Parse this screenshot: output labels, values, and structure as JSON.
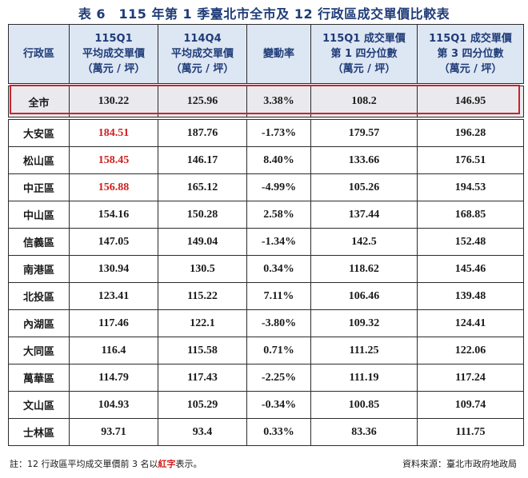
{
  "title": "表 6　115 年第 1 季臺北市全市及 12 行政區成交單價比較表",
  "headers": {
    "district": "行政區",
    "q_current": [
      "115Q1",
      "平均成交單價",
      "（萬元 / 坪）"
    ],
    "q_prev": [
      "114Q4",
      "平均成交單價",
      "（萬元 / 坪）"
    ],
    "change": "變動率",
    "p25": [
      "115Q1 成交單價",
      "第 1 四分位數",
      "（萬元 / 坪）"
    ],
    "p75": [
      "115Q1 成交單價",
      "第 3 四分位數",
      "（萬元 / 坪）"
    ]
  },
  "total": {
    "district": "全市",
    "q1": "130.22",
    "q4": "125.96",
    "change": "3.38%",
    "p25": "108.2",
    "p75": "146.95"
  },
  "rows": [
    {
      "district": "大安區",
      "q1": "184.51",
      "q4": "187.76",
      "change": "-1.73%",
      "p25": "179.57",
      "p75": "196.28",
      "highlight": true
    },
    {
      "district": "松山區",
      "q1": "158.45",
      "q4": "146.17",
      "change": "8.40%",
      "p25": "133.66",
      "p75": "176.51",
      "highlight": true
    },
    {
      "district": "中正區",
      "q1": "156.88",
      "q4": "165.12",
      "change": "-4.99%",
      "p25": "105.26",
      "p75": "194.53",
      "highlight": true
    },
    {
      "district": "中山區",
      "q1": "154.16",
      "q4": "150.28",
      "change": "2.58%",
      "p25": "137.44",
      "p75": "168.85",
      "highlight": false
    },
    {
      "district": "信義區",
      "q1": "147.05",
      "q4": "149.04",
      "change": "-1.34%",
      "p25": "142.5",
      "p75": "152.48",
      "highlight": false
    },
    {
      "district": "南港區",
      "q1": "130.94",
      "q4": "130.5",
      "change": "0.34%",
      "p25": "118.62",
      "p75": "145.46",
      "highlight": false
    },
    {
      "district": "北投區",
      "q1": "123.41",
      "q4": "115.22",
      "change": "7.11%",
      "p25": "106.46",
      "p75": "139.48",
      "highlight": false
    },
    {
      "district": "內湖區",
      "q1": "117.46",
      "q4": "122.1",
      "change": "-3.80%",
      "p25": "109.32",
      "p75": "124.41",
      "highlight": false
    },
    {
      "district": "大同區",
      "q1": "116.4",
      "q4": "115.58",
      "change": "0.71%",
      "p25": "111.25",
      "p75": "122.06",
      "highlight": false
    },
    {
      "district": "萬華區",
      "q1": "114.79",
      "q4": "117.43",
      "change": "-2.25%",
      "p25": "111.19",
      "p75": "117.24",
      "highlight": false
    },
    {
      "district": "文山區",
      "q1": "104.93",
      "q4": "105.29",
      "change": "-0.34%",
      "p25": "100.85",
      "p75": "109.74",
      "highlight": false
    },
    {
      "district": "士林區",
      "q1": "93.71",
      "q4": "93.4",
      "change": "0.33%",
      "p25": "83.36",
      "p75": "111.75",
      "highlight": false
    }
  ],
  "note": {
    "prefix": "註：12 行政區平均成交單價前 3 名以",
    "highlight": "紅字",
    "suffix": "表示。"
  },
  "source": "資料來源：臺北市政府地政局",
  "colors": {
    "title": "#1f3c78",
    "header_bg": "#dde6f3",
    "highlight_red": "#d21d1d",
    "total_frame": "#c8242c"
  }
}
